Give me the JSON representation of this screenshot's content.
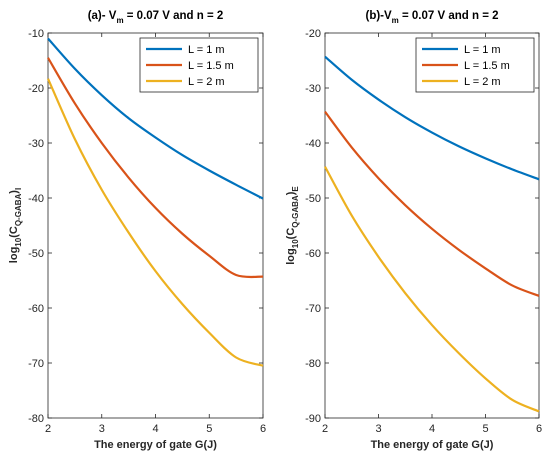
{
  "chart_data": [
    {
      "type": "line",
      "title_prefix": "(a)- V",
      "title_sub": "m",
      "title_suffix": " = 0.07 V and n = 2",
      "xlabel": "The energy of gate G(J)",
      "ylabel_main": "log",
      "ylabel_base": "10",
      "ylabel_open": "(C",
      "ylabel_sub": "Q-GABA",
      "ylabel_close": ")",
      "ylabel_tail": "I",
      "xlim": [
        2,
        6
      ],
      "ylim": [
        -80,
        -10
      ],
      "xticks": [
        2,
        3,
        4,
        5,
        6
      ],
      "yticks": [
        -10,
        -20,
        -30,
        -40,
        -50,
        -60,
        -70,
        -80
      ],
      "legend_position": "top-right",
      "grid": false,
      "x": [
        2,
        2.5,
        3,
        3.5,
        4,
        4.5,
        5,
        5.5,
        6
      ],
      "series": [
        {
          "name": "L = 1 m",
          "color": "#0072BD",
          "values": [
            -11,
            -16.5,
            -21.3,
            -25.5,
            -29.0,
            -32.2,
            -35.0,
            -37.6,
            -40.1
          ]
        },
        {
          "name": "L = 1.5 m",
          "color": "#D95319",
          "values": [
            -14.5,
            -22.8,
            -30.0,
            -36.3,
            -41.8,
            -46.5,
            -50.5,
            -54.0,
            -54.3
          ]
        },
        {
          "name": "L = 2 m",
          "color": "#EDB120",
          "values": [
            -18.3,
            -29.3,
            -38.5,
            -46.3,
            -53.3,
            -59.3,
            -64.5,
            -69.0,
            -70.5
          ]
        }
      ]
    },
    {
      "type": "line",
      "title_prefix": "(b)-V",
      "title_sub": "m",
      "title_suffix": " = 0.07 V and n = 2",
      "xlabel": "The energy of gate G(J)",
      "ylabel_main": "log",
      "ylabel_base": "10",
      "ylabel_open": "(C",
      "ylabel_sub": "Q-GABA",
      "ylabel_close": ")",
      "ylabel_tail": "E",
      "xlim": [
        2,
        6
      ],
      "ylim": [
        -90,
        -20
      ],
      "xticks": [
        2,
        3,
        4,
        5,
        6
      ],
      "yticks": [
        -20,
        -30,
        -40,
        -50,
        -60,
        -70,
        -80,
        -90
      ],
      "legend_position": "top-right",
      "grid": false,
      "x": [
        2,
        2.5,
        3,
        3.5,
        4,
        4.5,
        5,
        5.5,
        6
      ],
      "series": [
        {
          "name": "L = 1 m",
          "color": "#0072BD",
          "values": [
            -24.3,
            -28.5,
            -32.1,
            -35.3,
            -38.1,
            -40.6,
            -42.8,
            -44.8,
            -46.6
          ]
        },
        {
          "name": "L = 1.5 m",
          "color": "#D95319",
          "values": [
            -34.3,
            -40.8,
            -46.4,
            -51.3,
            -55.6,
            -59.4,
            -62.8,
            -65.9,
            -67.8
          ]
        },
        {
          "name": "L = 2 m",
          "color": "#EDB120",
          "values": [
            -44.3,
            -53.2,
            -60.7,
            -67.3,
            -73.1,
            -78.2,
            -82.8,
            -86.7,
            -88.8
          ]
        }
      ]
    }
  ]
}
